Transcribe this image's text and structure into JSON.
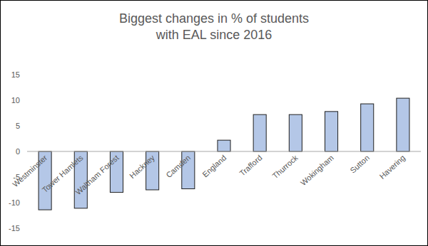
{
  "chart_data": {
    "type": "bar",
    "title": "Biggest changes in % of students with EAL since 2016",
    "categories": [
      "Westminster",
      "Tower Hamlets",
      "Waltham Forest",
      "Hackney",
      "Camden",
      "England",
      "Trafford",
      "Thurrock",
      "Wokingham",
      "Sutton",
      "Havering"
    ],
    "values": [
      -11.4,
      -11.1,
      -8,
      -7.5,
      -7.3,
      2.2,
      7.2,
      7.2,
      7.8,
      9.3,
      10.4
    ],
    "color": "#b4c7e7",
    "ylim": [
      -15,
      15
    ],
    "yticks": [
      -15,
      -10,
      -5,
      0,
      5,
      10,
      15
    ],
    "grid": false
  }
}
